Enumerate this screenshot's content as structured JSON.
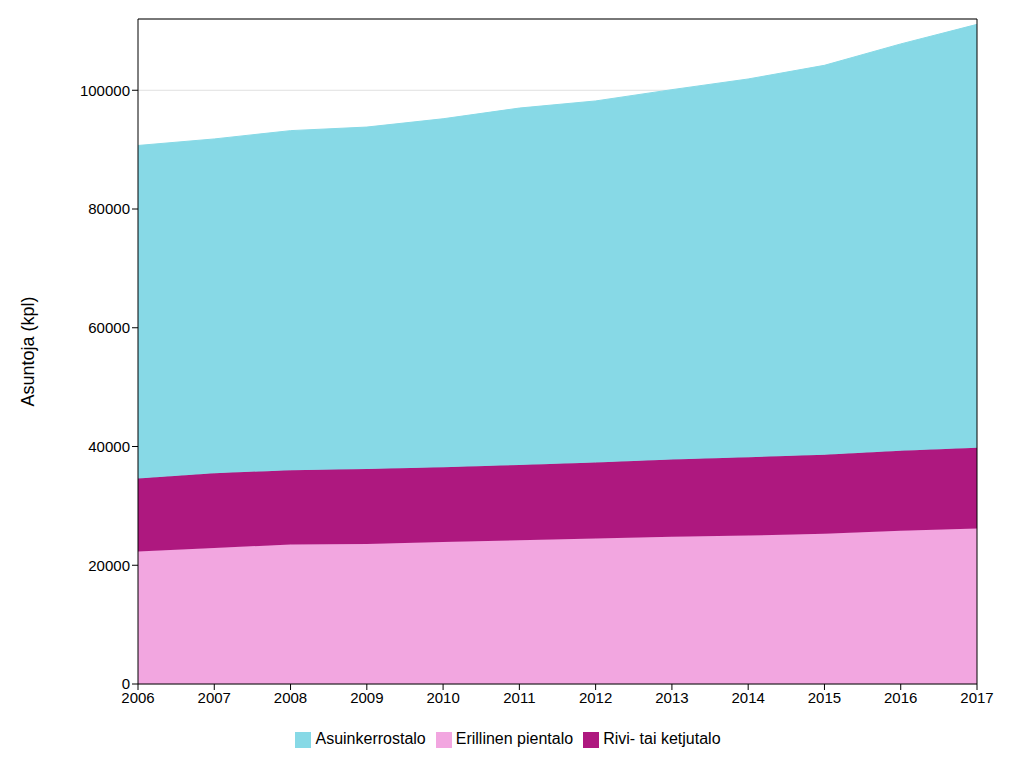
{
  "chart_data": {
    "type": "area",
    "stacked": true,
    "y_label": "Asuntoja (kpl)",
    "x": [
      2006,
      2007,
      2008,
      2009,
      2010,
      2011,
      2012,
      2013,
      2014,
      2015,
      2016,
      2017
    ],
    "xlim": [
      2006,
      2017
    ],
    "xticks": [
      2006,
      2007,
      2008,
      2009,
      2010,
      2011,
      2012,
      2013,
      2014,
      2015,
      2016,
      2017
    ],
    "ylim": [
      0,
      112000
    ],
    "yticks": [
      0,
      20000,
      40000,
      60000,
      80000,
      100000
    ],
    "grid": true,
    "legend": "bottom",
    "series": [
      {
        "name": "Erillinen pientalo",
        "color": "#f2a6e0",
        "values": [
          22300,
          22900,
          23500,
          23600,
          23900,
          24200,
          24500,
          24800,
          25000,
          25300,
          25800,
          26200
        ]
      },
      {
        "name": "Rivi- tai ketjutalo",
        "color": "#ae187f",
        "values": [
          12300,
          12600,
          12500,
          12600,
          12600,
          12700,
          12800,
          13000,
          13200,
          13300,
          13500,
          13600
        ]
      },
      {
        "name": "Asuinkerrostalo",
        "color": "#87d9e6",
        "values": [
          56100,
          56300,
          57200,
          57600,
          58700,
          60100,
          60900,
          62300,
          63700,
          65600,
          68500,
          71300
        ]
      }
    ]
  }
}
